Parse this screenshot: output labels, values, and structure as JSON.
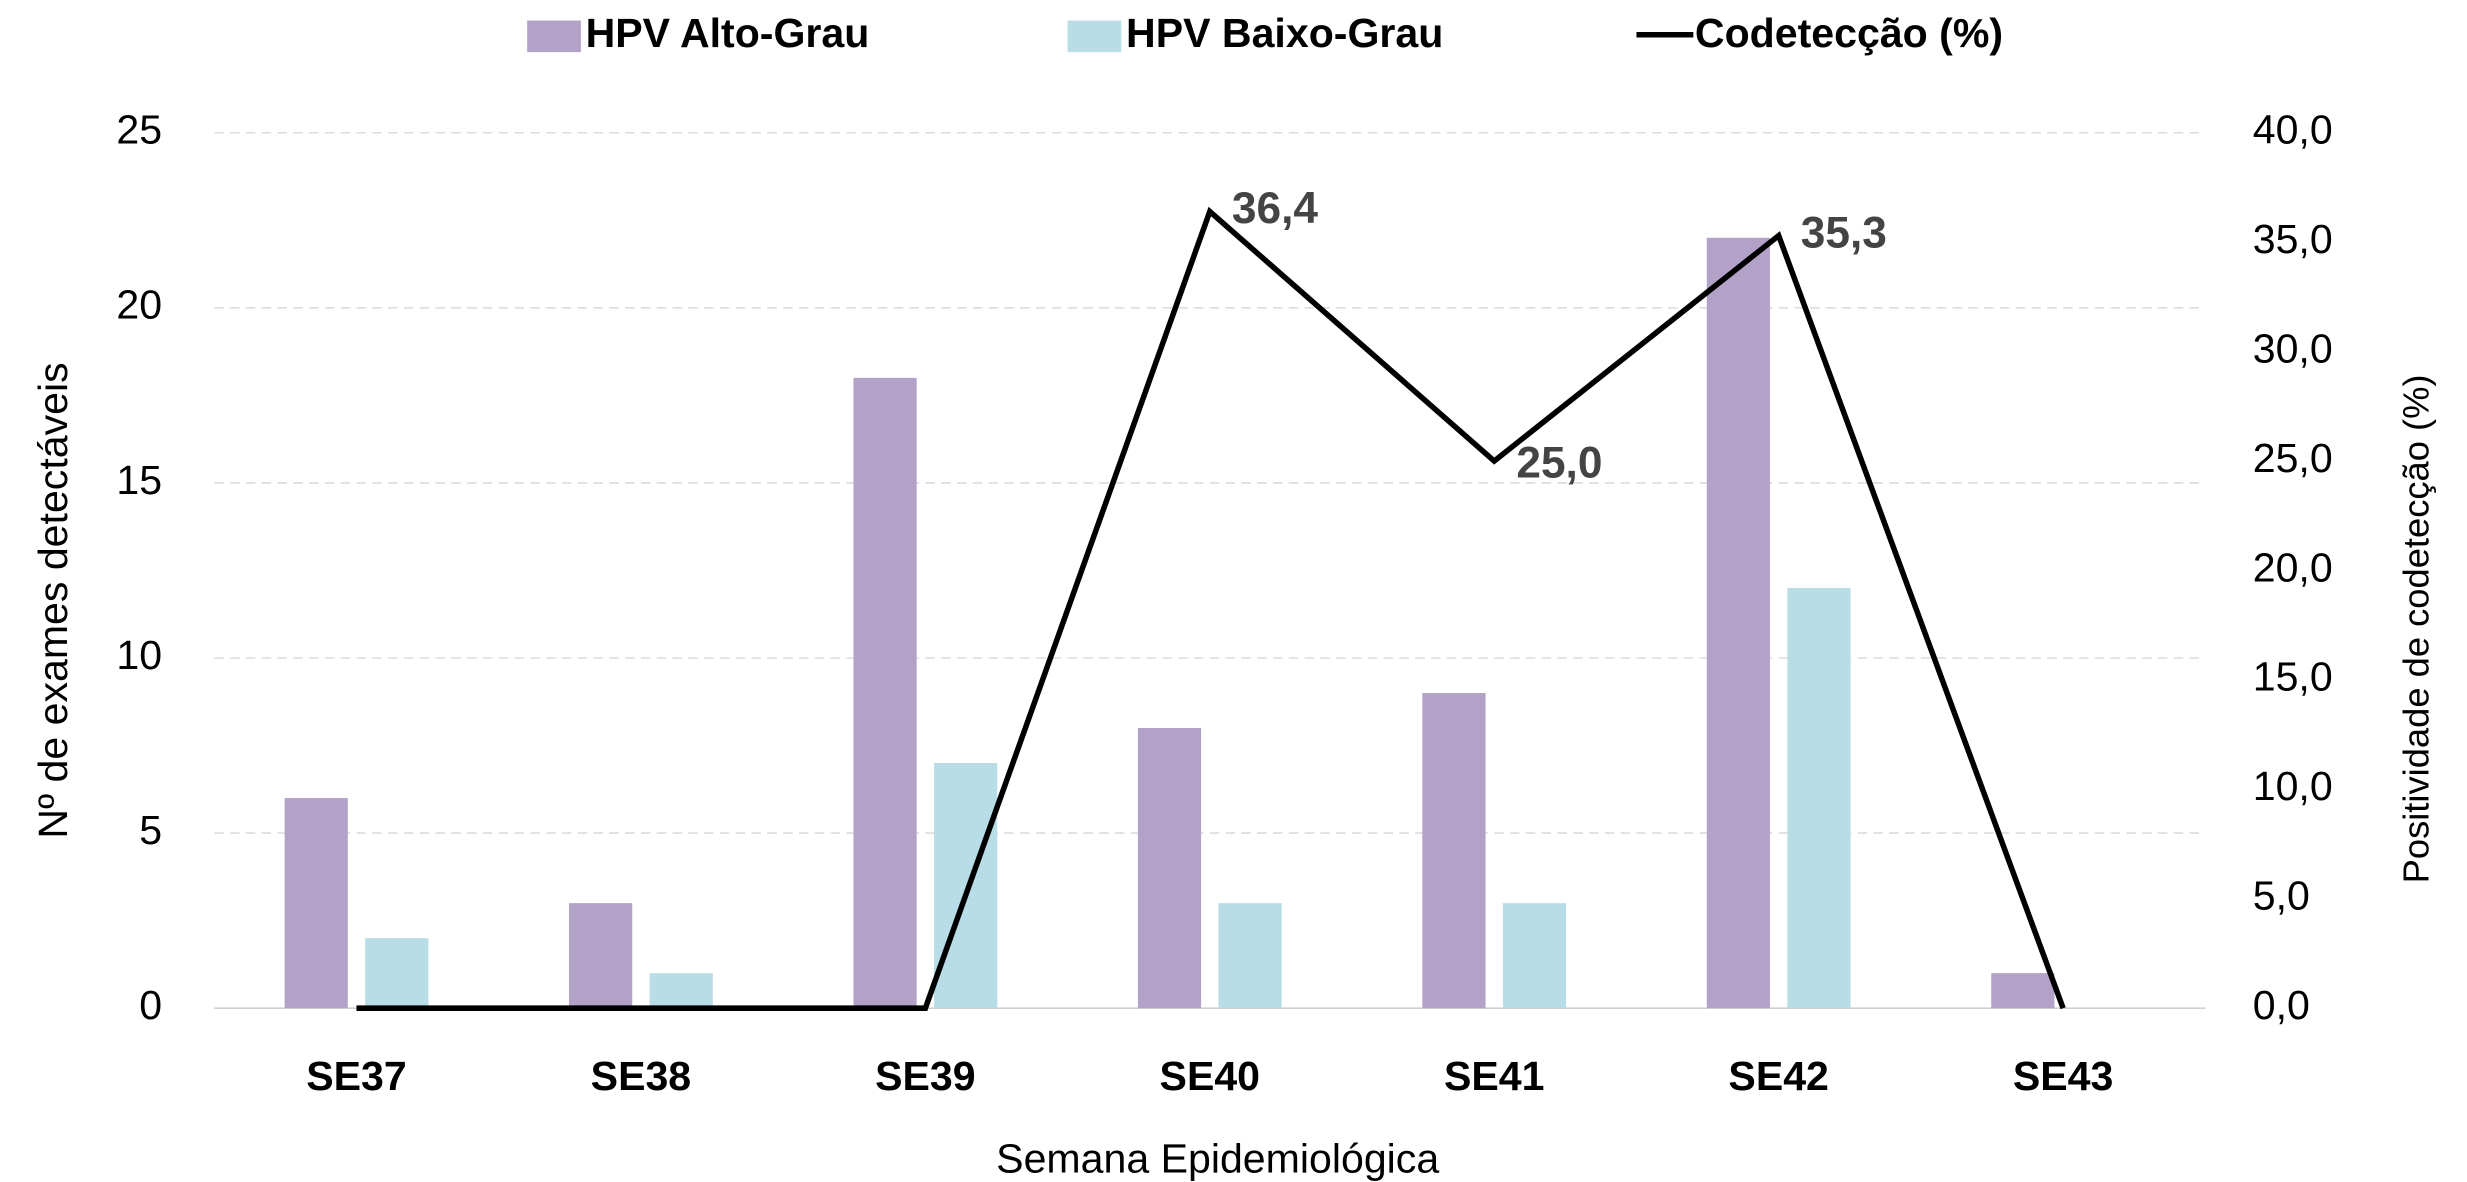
{
  "chart_data": {
    "type": "bar-line",
    "categories": [
      "SE37",
      "SE38",
      "SE39",
      "SE40",
      "SE41",
      "SE42",
      "SE43"
    ],
    "series": [
      {
        "name": "HPV Alto-Grau",
        "color": "#b3a2c8",
        "type": "bar",
        "values": [
          6,
          3,
          18,
          8,
          9,
          22,
          1
        ]
      },
      {
        "name": "HPV Baixo-Grau",
        "color": "#b8dde6",
        "type": "bar",
        "values": [
          2,
          1,
          7,
          3,
          3,
          12,
          0
        ]
      },
      {
        "name": "Codetecção (%)",
        "color": "#000000",
        "type": "line",
        "axis": "y2",
        "values": [
          0,
          0,
          0,
          36.4,
          25.0,
          35.3,
          0
        ],
        "value_labels": [
          null,
          null,
          null,
          "36,4",
          "25,0",
          "35,3",
          null
        ]
      }
    ],
    "xlabel": "Semana Epidemiológica",
    "ylabel": "Nº de exames detectáveis",
    "y2label": "Positividade de codetecção (%)",
    "ylim": [
      0,
      25
    ],
    "yticks": [
      0,
      5,
      10,
      15,
      20,
      25
    ],
    "y2lim": [
      0,
      40
    ],
    "y2ticks": [
      {
        "value": 0,
        "label": "0,0"
      },
      {
        "value": 5,
        "label": "5,0"
      },
      {
        "value": 10,
        "label": "10,0"
      },
      {
        "value": 15,
        "label": "15,0"
      },
      {
        "value": 20,
        "label": "20,0"
      },
      {
        "value": 25,
        "label": "25,0"
      },
      {
        "value": 30,
        "label": "30,0"
      },
      {
        "value": 35,
        "label": "35,0"
      },
      {
        "value": 40,
        "label": "40,0"
      }
    ],
    "grid": true,
    "legend": "top"
  }
}
